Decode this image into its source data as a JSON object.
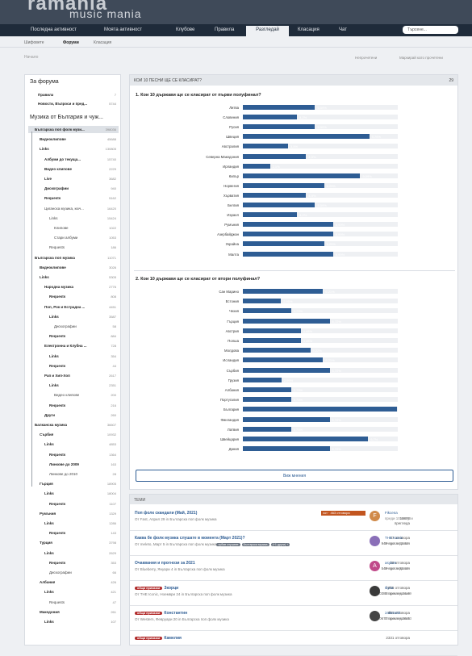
{
  "brand": {
    "t1": "ramania",
    "t2": "music mania"
  },
  "nav": {
    "items": [
      "Последна активност",
      "Моята активност",
      "Клубове",
      "Правила",
      "Разгледай",
      "Класация",
      "Чат"
    ],
    "active": "Разгледай",
    "search_placeholder": "Търсене..."
  },
  "subnav": [
    "Шифовете",
    "Форуми",
    "Класация"
  ],
  "breadcrumb": "Начало",
  "toolbar": [
    "Непрочетени",
    "Маркирай като прочетени"
  ],
  "sidebar": {
    "h1": "За форума",
    "about": [
      [
        "Правила",
        "7"
      ],
      [
        "Новости, Въпроси и пред...",
        "5744"
      ]
    ],
    "h2": "Музика от България и чуж...",
    "items": [
      [
        "Българска поп фолк музи...",
        "398036"
      ],
      [
        "Видеоклипове",
        "45688"
      ],
      [
        "Links",
        "130805"
      ],
      [
        "Албуми до текуща...",
        "15740"
      ],
      [
        "Видео клипове",
        "2229"
      ],
      [
        "Live",
        "3682"
      ],
      [
        "Дискографии",
        "940"
      ],
      [
        "Requests",
        "5162"
      ],
      [
        "Циганска музика, кюч...",
        "16420"
      ],
      [
        "Links",
        "15424"
      ],
      [
        "Клипове",
        "1022"
      ],
      [
        "Стари албуми",
        "1053"
      ],
      [
        "Requests",
        "186"
      ],
      [
        "Българска поп музика",
        "11071"
      ],
      [
        "Видеоклипове",
        "3026"
      ],
      [
        "Links",
        "5305"
      ],
      [
        "Народна музика",
        "2776"
      ],
      [
        "Requests",
        "808"
      ],
      [
        "Поп, Рок и Естрадна ...",
        "4451"
      ],
      [
        "Links",
        "3587"
      ],
      [
        "Дискографии",
        "58"
      ],
      [
        "Requests",
        "884"
      ],
      [
        "Електронна и Клубна ...",
        "728"
      ],
      [
        "Links",
        "354"
      ],
      [
        "Requests",
        "44"
      ],
      [
        "Рап и Хип-Хоп",
        "2617"
      ],
      [
        "Links",
        "2351"
      ],
      [
        "Видео клипове",
        "200"
      ],
      [
        "Requests",
        "216"
      ],
      [
        "Други",
        "260"
      ],
      [
        "Балканска музика",
        "36607"
      ],
      [
        "Сърбия",
        "10932"
      ],
      [
        "Links",
        "4853"
      ],
      [
        "Requests",
        "1364"
      ],
      [
        "Линкове до 2009",
        "163"
      ],
      [
        "Линкове до 2010",
        "28"
      ],
      [
        "Гърция",
        "18905"
      ],
      [
        "Links",
        "18004"
      ],
      [
        "Requests",
        "1107"
      ],
      [
        "Румъния",
        "1329"
      ],
      [
        "Links",
        "1286"
      ],
      [
        "Requests",
        "143"
      ],
      [
        "Турция",
        "3798"
      ],
      [
        "Links",
        "2629"
      ],
      [
        "Requests",
        "353"
      ],
      [
        "Дискографии",
        "66"
      ],
      [
        "Албания",
        "426"
      ],
      [
        "Links",
        "421"
      ],
      [
        "Requests",
        "47"
      ],
      [
        "Македония",
        "261"
      ],
      [
        "Links",
        "107"
      ]
    ]
  },
  "poll": {
    "header": "КОИ 10 ПЕСНИ ЩЕ СЕ КЛАСИРАТ?",
    "votes": "29",
    "q1": "1. Кои 10 държави ще се класират от първи полуфинал?",
    "q2": "2. Кои 10 държави ще се класират от втори полуфинал?",
    "button": "Виж мнения",
    "q1_rows": [
      [
        "Литва",
        "5,59%"
      ],
      [
        "Словения",
        "4,2%"
      ],
      [
        "Русия",
        "5,59%"
      ],
      [
        "Швеция",
        "9,79%"
      ],
      [
        "Австралия",
        "3,5%"
      ],
      [
        "Северна Македония",
        "4,9%"
      ],
      [
        "Ирландия",
        "2,1%"
      ],
      [
        "Кипър",
        "9,09%"
      ],
      [
        "Норвегия",
        "6,29%"
      ],
      [
        "Хърватия",
        "4,9%"
      ],
      [
        "Белгия",
        "5,59%"
      ],
      [
        "Израел",
        "4,2%"
      ],
      [
        "Румъния",
        "6,99%"
      ],
      [
        "Азербайджан",
        "6,99%"
      ],
      [
        "Украйна",
        "6,29%"
      ],
      [
        "Малта",
        "6,99%"
      ]
    ],
    "q2_rows": [
      [
        "Сан Марино",
        "6,21%"
      ],
      [
        "Естония",
        "2,95%"
      ],
      [
        "Чехия",
        "3,73%"
      ],
      [
        "Гърция",
        "6,72%"
      ],
      [
        "Австрия",
        "4,48%"
      ],
      [
        "Полша",
        "4,48%"
      ],
      [
        "Молдова",
        "5,22%"
      ],
      [
        "Исландия",
        "6,21%"
      ],
      [
        "Сърбия",
        "6,72%"
      ],
      [
        "Грузия",
        "2,99%"
      ],
      [
        "Албания",
        "3,73%"
      ],
      [
        "Португалия",
        "3,73%"
      ],
      [
        "България",
        "11,94%"
      ],
      [
        "Финландия",
        "6,72%"
      ],
      [
        "Латвия",
        "3,73%"
      ],
      [
        "Швейцария",
        "9,7%"
      ],
      [
        "Дания",
        "6,72%"
      ]
    ]
  },
  "threads": {
    "header": "ТЕМИ",
    "rows": [
      {
        "title": "Поп фолк скандали (Май, 2021)",
        "meta": "От Fast, Април 29 in Българска поп фолк музика",
        "hot": "хот · 463 отговора",
        "s1": "10876",
        "s2": "прегледа",
        "u": "Fikcena",
        "d": "преди 10 минути",
        "av": "F",
        "c": "#d08a4a"
      },
      {
        "title": "Каква бе фолк музика слушате в момента (Март 2021)?",
        "meta": "От meleto, Март 5 in Българска поп фолк музика",
        "tags": [
          "хубав слушане",
          "Българска музика",
          "(+1 други) +"
        ],
        "s1": "87 отговора",
        "s2": "949 прегледания",
        "u": "THE Iconic",
        "d": "Вчера в 12:32",
        "av": "",
        "c": "#8a6fb8"
      },
      {
        "title": "Очаквания и прогнози за 2021",
        "meta": "От Blueberry, Януари 4 in Българска поп фолк музика",
        "s1": "28 отговора",
        "s2": "549 прегледания",
        "u": "asylum",
        "d": "Вчера в 01:10",
        "av": "A",
        "c": "#c04a8a"
      },
      {
        "title": "Зкорци",
        "meta": "От THE Iconic, Ноември 24 in Българска поп фолк музика",
        "pfx": "общи приказки",
        "s1": "1858 отговора",
        "s2": "60385 прегледания",
        "u": "Illyria",
        "d": "Вторник в 21:49",
        "av": "",
        "c": "#3a3a3a"
      },
      {
        "title": "Константин",
        "meta": "От Western, Февруари 20 in Българска поп фолк музика",
        "pfx": "общи приказки",
        "s1": "881 отговора",
        "s2": "20677 прегледания",
        "u": "zaiketo82",
        "d": "Вторник в 20:33",
        "av": "",
        "c": "#444"
      },
      {
        "title": "Камелия",
        "meta": "",
        "pfx": "общи приказки",
        "s1": "2331 отговора",
        "s2": "",
        "u": "",
        "d": "",
        "av": "",
        "c": "#6b4"
      }
    ]
  }
}
